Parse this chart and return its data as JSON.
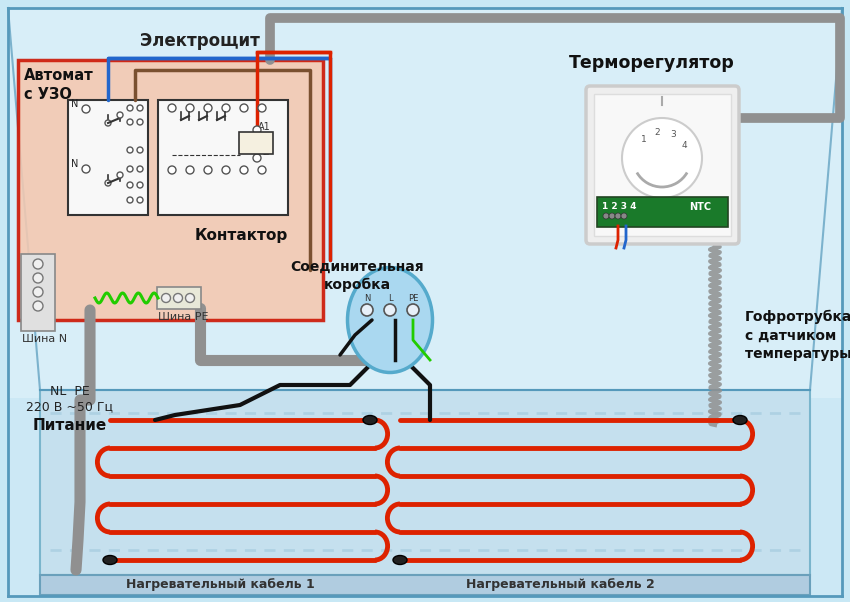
{
  "bg_color": "#c8e8f5",
  "bg_gradient_top": "#d5edf8",
  "bg_gradient_bottom": "#b5d5e8",
  "floor_color": "#c0dcea",
  "floor_edge_color": "#7ab8d0",
  "panel_fill": "#f5c8b0",
  "panel_border": "#cc1100",
  "room_border": "#5599bb",
  "label_electroscit": "Электрощит",
  "label_avtomat": "Автомат\nс УЗО",
  "label_kontaktor": "Контактор",
  "label_shina_n": "Шина N",
  "label_shina_pe": "Шина PE",
  "label_soedinit": "Соединительная\nкоробка",
  "label_termoreg": "Терморегулятор",
  "label_gofro": "Гофротрубка\nс датчиком\nтемпературы пола",
  "label_pitanie_top": "NL  PE",
  "label_pitanie_mid": "220 В ~50 Гц",
  "label_pitanie_bot": "Питание",
  "label_kabel1": "Нагревательный кабель 1",
  "label_kabel2": "Нагревательный кабель 2",
  "color_red": "#dd2200",
  "color_blue": "#2266cc",
  "color_gray": "#909090",
  "color_gray_dark": "#666666",
  "color_brown": "#7a5030",
  "color_green_bright": "#22cc00",
  "color_green_dark": "#005500",
  "color_black": "#111111",
  "color_white": "#ffffff",
  "color_cream": "#f5f0e8"
}
